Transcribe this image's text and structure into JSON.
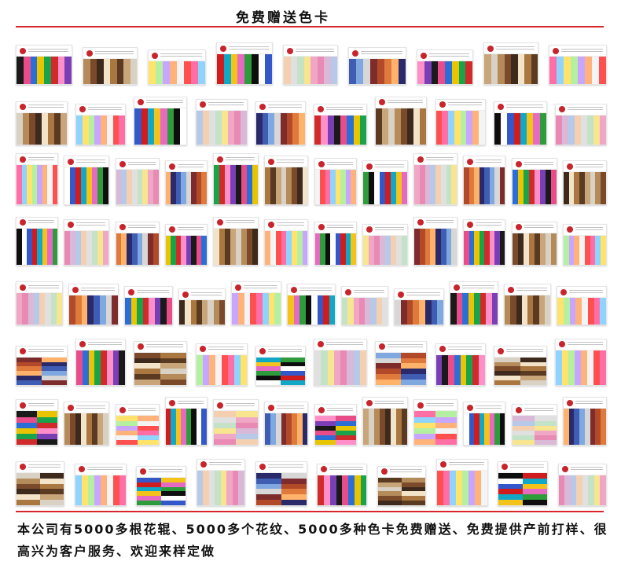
{
  "header": {
    "title": "免费赠送色卡"
  },
  "colors": {
    "accent_rule": "#d9262c",
    "logo": "#c8242b"
  },
  "palettes": [
    [
      "#1a1a1a",
      "#e84d8a",
      "#2b6fd6",
      "#e9c400",
      "#19a34a",
      "#d12a2a",
      "#ff8fc8",
      "#7b3fb5"
    ],
    [
      "#d9d1c4",
      "#b58b5a",
      "#7a4a2b",
      "#3d2a1d",
      "#f2e3c9",
      "#a9773f",
      "#5b3a22",
      "#c9a57a"
    ],
    [
      "#ff6fa6",
      "#8fd3ff",
      "#ffe36a",
      "#b5f0a1",
      "#c8a6ff",
      "#ffb27a",
      "#f4f4f4",
      "#ff4f4f"
    ],
    [
      "#0e0e0e",
      "#ffffff",
      "#3458c9",
      "#d01c1c",
      "#11a7c7",
      "#f3c31a",
      "#e66ac2",
      "#2f9c3c"
    ],
    [
      "#f0a7c5",
      "#e88ab3",
      "#d9b9d7",
      "#b7c9e8",
      "#f5d0b0",
      "#e0e0e0",
      "#c3e2c6",
      "#f7e58f"
    ],
    [
      "#7d2b2b",
      "#b24a2a",
      "#e07a3c",
      "#ffb36a",
      "#2a2a6b",
      "#3f5db3",
      "#7fa8e0",
      "#d7d7d7"
    ]
  ],
  "footer": {
    "text": "本公司有5000多根花辊、5000多个花纹、5000多种色卡免费赠送、免费提供产前打样、很高兴为客户服务、欢迎来样定做"
  }
}
